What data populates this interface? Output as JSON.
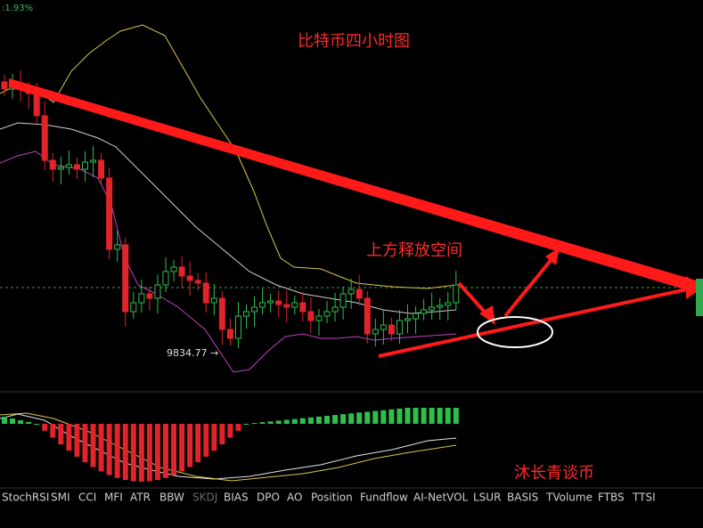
{
  "header": {
    "change": ":1.93%"
  },
  "annotations": {
    "title": "比特币四小时图",
    "note": "上方释放空间",
    "price_label": "9834.77 →",
    "watermark": "沐长青谈币"
  },
  "tabs": [
    "StochRSI",
    "SMI",
    "CCI",
    "MFI",
    "ATR",
    "BBW",
    "SKDJ",
    "BIAS",
    "DPO",
    "AO",
    "Position",
    "Fundflow",
    "AI-NetVOL",
    "LSUR",
    "BASIS",
    "TVolume",
    "FTBS",
    "TTSI"
  ]
}
